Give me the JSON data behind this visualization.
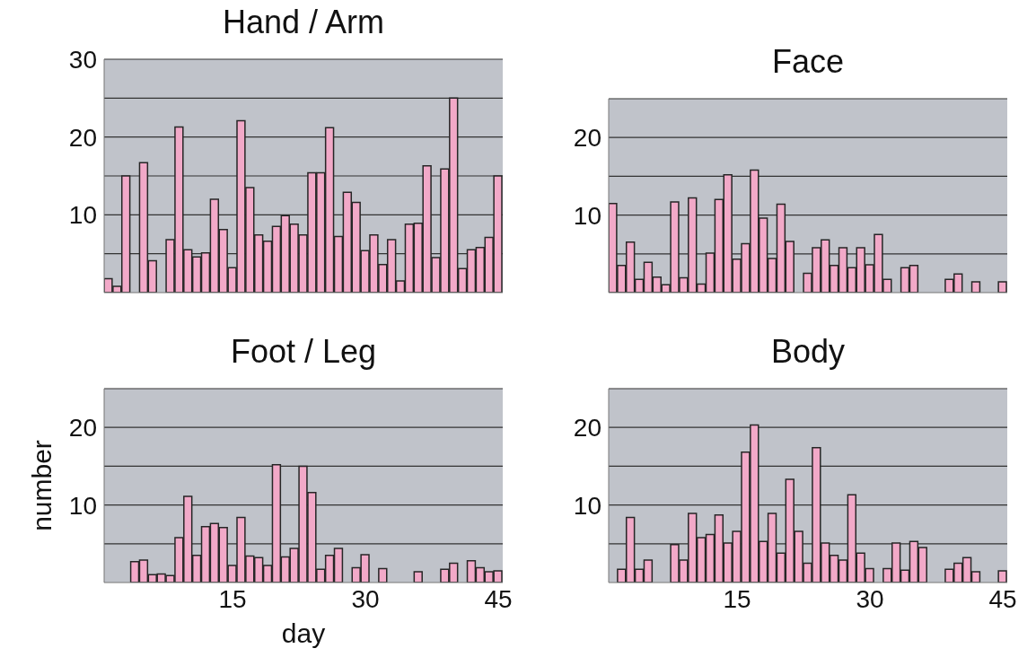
{
  "chart_data": [
    {
      "type": "bar",
      "title": "Hand / Arm",
      "x": [
        1,
        2,
        3,
        4,
        5,
        6,
        7,
        8,
        9,
        10,
        11,
        12,
        13,
        14,
        15,
        16,
        17,
        18,
        19,
        20,
        21,
        22,
        23,
        24,
        25,
        26,
        27,
        28,
        29,
        30,
        31,
        32,
        33,
        34,
        35,
        36,
        37,
        38,
        39,
        40,
        41,
        42,
        43,
        44,
        45
      ],
      "color": "#f2a9c8",
      "values": [
        1.8,
        0.8,
        15,
        0,
        16.7,
        4.1,
        0,
        6.8,
        21.3,
        5.5,
        4.6,
        5.1,
        12,
        8.1,
        3.2,
        22.1,
        13.5,
        7.4,
        6.6,
        8.5,
        9.9,
        8.8,
        7.4,
        15.4,
        15.4,
        21.2,
        7.2,
        12.9,
        11.6,
        5.4,
        7.4,
        3.6,
        6.8,
        1.5,
        8.8,
        8.9,
        16.3,
        4.5,
        15.9,
        25,
        3.1,
        5.5,
        5.8,
        7.1,
        15
      ],
      "xlim": [
        0.5,
        45.5
      ],
      "xticks": [
        15,
        30,
        45
      ],
      "ylim": [
        0,
        30
      ],
      "yticks": [
        {
          "value": 5,
          "label": null
        },
        10,
        {
          "value": 15,
          "label": null
        },
        20,
        {
          "value": 25,
          "label": null
        },
        30
      ],
      "grid": "y",
      "tick_labels": "y"
    },
    {
      "type": "bar",
      "title": "Face",
      "x": [
        1,
        2,
        3,
        4,
        5,
        6,
        7,
        8,
        9,
        10,
        11,
        12,
        13,
        14,
        15,
        16,
        17,
        18,
        19,
        20,
        21,
        22,
        23,
        24,
        25,
        26,
        27,
        28,
        29,
        30,
        31,
        32,
        33,
        34,
        35,
        36,
        37,
        38,
        39,
        40,
        41,
        42,
        43,
        44,
        45
      ],
      "color": "#f2a9c8",
      "values": [
        11.5,
        3.5,
        6.5,
        1.7,
        3.9,
        2,
        1,
        11.7,
        1.9,
        12.2,
        1.1,
        5.1,
        12,
        15.2,
        4.3,
        6.3,
        15.8,
        9.6,
        4.4,
        11.4,
        6.6,
        0,
        2.5,
        5.8,
        6.8,
        3.5,
        5.8,
        3.2,
        5.8,
        3.6,
        7.5,
        1.7,
        0,
        3.2,
        3.5,
        0,
        0,
        0,
        1.7,
        2.4,
        0,
        1.4,
        0,
        0,
        1.4
      ],
      "xlim": [
        0.5,
        45.5
      ],
      "xticks": [
        15,
        30,
        45
      ],
      "ylim": [
        0,
        25
      ],
      "yticks": [
        {
          "value": 5,
          "label": null
        },
        10,
        {
          "value": 15,
          "label": null
        },
        20,
        {
          "value": 25,
          "label": null
        }
      ],
      "grid": "y",
      "tick_labels": "y"
    },
    {
      "type": "bar",
      "title": "Foot / Leg",
      "xlabel": "day",
      "ylabel": "number",
      "x": [
        1,
        2,
        3,
        4,
        5,
        6,
        7,
        8,
        9,
        10,
        11,
        12,
        13,
        14,
        15,
        16,
        17,
        18,
        19,
        20,
        21,
        22,
        23,
        24,
        25,
        26,
        27,
        28,
        29,
        30,
        31,
        32,
        33,
        34,
        35,
        36,
        37,
        38,
        39,
        40,
        41,
        42,
        43,
        44,
        45
      ],
      "color": "#f2a9c8",
      "values": [
        0,
        0,
        0,
        2.7,
        2.9,
        1,
        1.1,
        0.9,
        5.8,
        11.1,
        3.5,
        7.2,
        7.6,
        7.1,
        2.2,
        8.4,
        3.4,
        3.2,
        2.2,
        15.2,
        3.3,
        4.4,
        15,
        11.6,
        1.7,
        3.5,
        4.4,
        0,
        1.9,
        3.6,
        0,
        1.8,
        0,
        0,
        0,
        1.4,
        0,
        0,
        1.7,
        2.5,
        0,
        2.8,
        1.9,
        1.4,
        1.5
      ],
      "xlim": [
        0.5,
        45.5
      ],
      "xticks": [
        15,
        30,
        45
      ],
      "ylim": [
        0,
        25
      ],
      "yticks": [
        {
          "value": 5,
          "label": null
        },
        10,
        {
          "value": 15,
          "label": null
        },
        20,
        {
          "value": 25,
          "label": null
        }
      ],
      "grid": "y"
    },
    {
      "type": "bar",
      "title": "Body",
      "x": [
        1,
        2,
        3,
        4,
        5,
        6,
        7,
        8,
        9,
        10,
        11,
        12,
        13,
        14,
        15,
        16,
        17,
        18,
        19,
        20,
        21,
        22,
        23,
        24,
        25,
        26,
        27,
        28,
        29,
        30,
        31,
        32,
        33,
        34,
        35,
        36,
        37,
        38,
        39,
        40,
        41,
        42,
        43,
        44,
        45
      ],
      "color": "#f2a9c8",
      "values": [
        0,
        1.7,
        8.4,
        1.7,
        2.9,
        0,
        0,
        4.9,
        2.9,
        8.9,
        5.8,
        6.2,
        8.7,
        5.1,
        6.6,
        16.8,
        20.3,
        5.3,
        8.9,
        3.8,
        13.3,
        6.6,
        2.5,
        17.4,
        5.1,
        3.5,
        2.9,
        11.3,
        3.8,
        1.8,
        0,
        1.8,
        5.1,
        1.6,
        5.3,
        4.5,
        0,
        0,
        1.7,
        2.5,
        3.2,
        1.4,
        0,
        0,
        1.5
      ],
      "xlim": [
        0.5,
        45.5
      ],
      "xticks": [
        15,
        30,
        45
      ],
      "ylim": [
        0,
        25
      ],
      "yticks": [
        {
          "value": 5,
          "label": null
        },
        10,
        {
          "value": 15,
          "label": null
        },
        20,
        {
          "value": 25,
          "label": null
        }
      ],
      "grid": "y"
    }
  ]
}
